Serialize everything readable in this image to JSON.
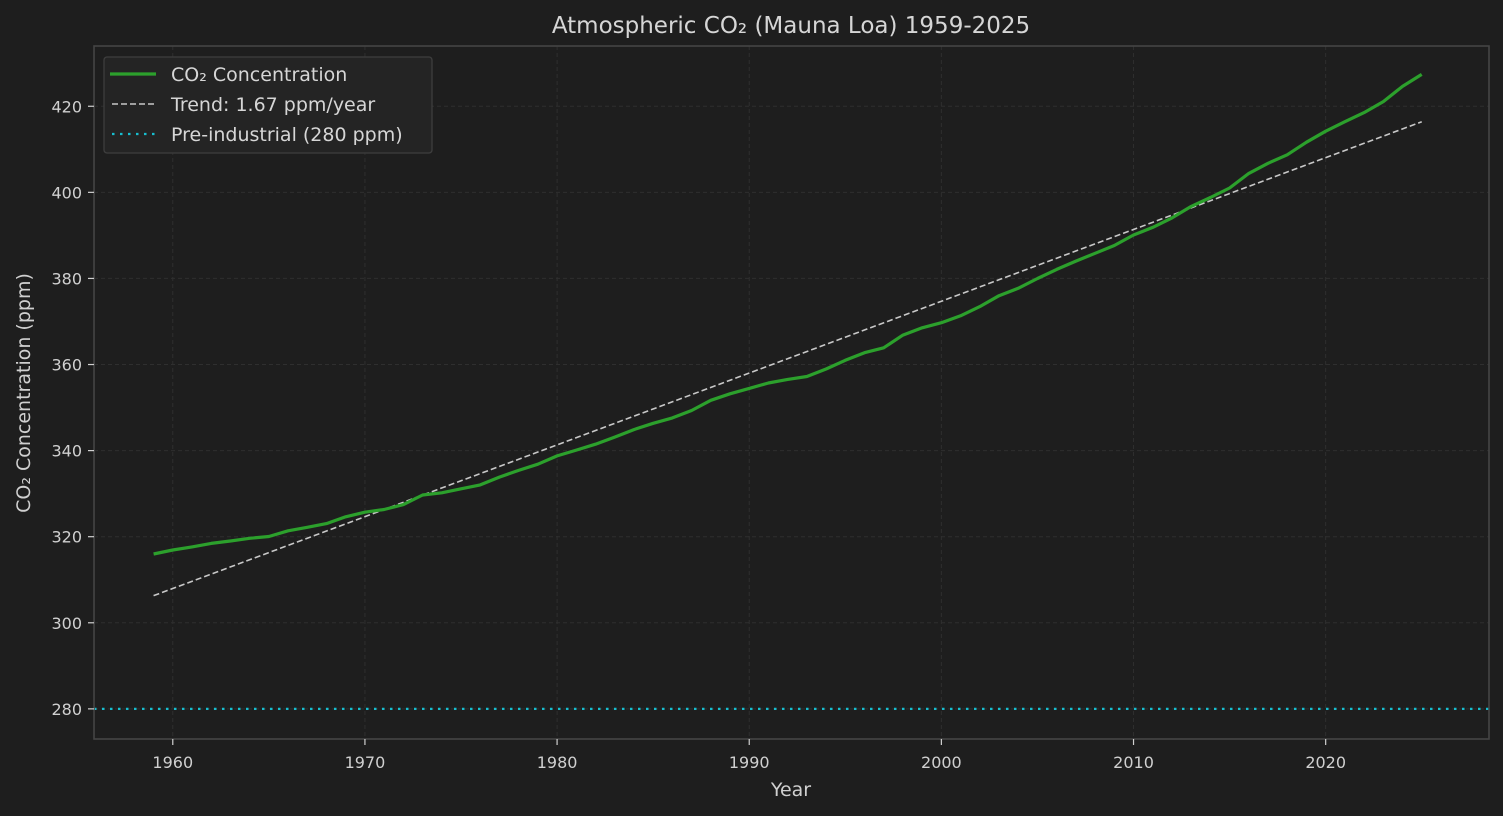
{
  "chart_data": {
    "type": "line",
    "title": "Atmospheric CO₂ (Mauna Loa) 1959-2025",
    "xlabel": "Year",
    "ylabel": "CO₂ Concentration (ppm)",
    "xlim": [
      1955.9,
      2028.5
    ],
    "ylim": [
      273,
      434
    ],
    "xticks": [
      1960,
      1970,
      1980,
      1990,
      2000,
      2010,
      2020
    ],
    "yticks": [
      280,
      300,
      320,
      340,
      360,
      380,
      400,
      420
    ],
    "grid": true,
    "legend_position": "upper left",
    "x": [
      1959,
      1960,
      1961,
      1962,
      1963,
      1964,
      1965,
      1966,
      1967,
      1968,
      1969,
      1970,
      1971,
      1972,
      1973,
      1974,
      1975,
      1976,
      1977,
      1978,
      1979,
      1980,
      1981,
      1982,
      1983,
      1984,
      1985,
      1986,
      1987,
      1988,
      1989,
      1990,
      1991,
      1992,
      1993,
      1994,
      1995,
      1996,
      1997,
      1998,
      1999,
      2000,
      2001,
      2002,
      2003,
      2004,
      2005,
      2006,
      2007,
      2008,
      2009,
      2010,
      2011,
      2012,
      2013,
      2014,
      2015,
      2016,
      2017,
      2018,
      2019,
      2020,
      2021,
      2022,
      2023,
      2024,
      2025
    ],
    "series": [
      {
        "name": "CO₂ Concentration",
        "style": "solid",
        "color": "#2ca02c",
        "values": [
          315.98,
          316.91,
          317.64,
          318.45,
          318.99,
          319.62,
          320.04,
          321.37,
          322.18,
          323.05,
          324.62,
          325.68,
          326.32,
          327.46,
          329.68,
          330.19,
          331.13,
          332.03,
          333.84,
          335.41,
          336.84,
          338.76,
          340.12,
          341.48,
          343.15,
          344.87,
          346.35,
          347.61,
          349.31,
          351.69,
          353.2,
          354.45,
          355.7,
          356.54,
          357.21,
          358.96,
          360.97,
          362.74,
          363.88,
          366.84,
          368.54,
          369.71,
          371.32,
          373.45,
          375.98,
          377.7,
          379.98,
          382.09,
          384.02,
          385.83,
          387.64,
          390.1,
          391.85,
          394.06,
          396.74,
          398.81,
          401.01,
          404.41,
          406.76,
          408.72,
          411.65,
          414.21,
          416.41,
          418.53,
          421.08,
          424.61,
          427.4
        ]
      },
      {
        "name": "Trend: 1.67 ppm/year",
        "style": "dashed",
        "color": "#c8c8c8",
        "slope": 1.67,
        "start": {
          "x": 1959,
          "y": 306.3
        },
        "end": {
          "x": 2025,
          "y": 416.4
        }
      },
      {
        "name": "Pre-industrial (280 ppm)",
        "style": "dotted",
        "color": "#17becf",
        "constant": 280
      }
    ]
  },
  "legend": {
    "items": [
      {
        "label": "CO₂ Concentration"
      },
      {
        "label": "Trend: 1.67 ppm/year"
      },
      {
        "label": "Pre-industrial (280 ppm)"
      }
    ]
  },
  "colors": {
    "background": "#1e1e1e",
    "frame": "#444444",
    "grid": "#333333",
    "text": "#d0d0d0",
    "co2_line": "#2ca02c",
    "trend_line": "#c8c8c8",
    "baseline": "#17becf"
  }
}
